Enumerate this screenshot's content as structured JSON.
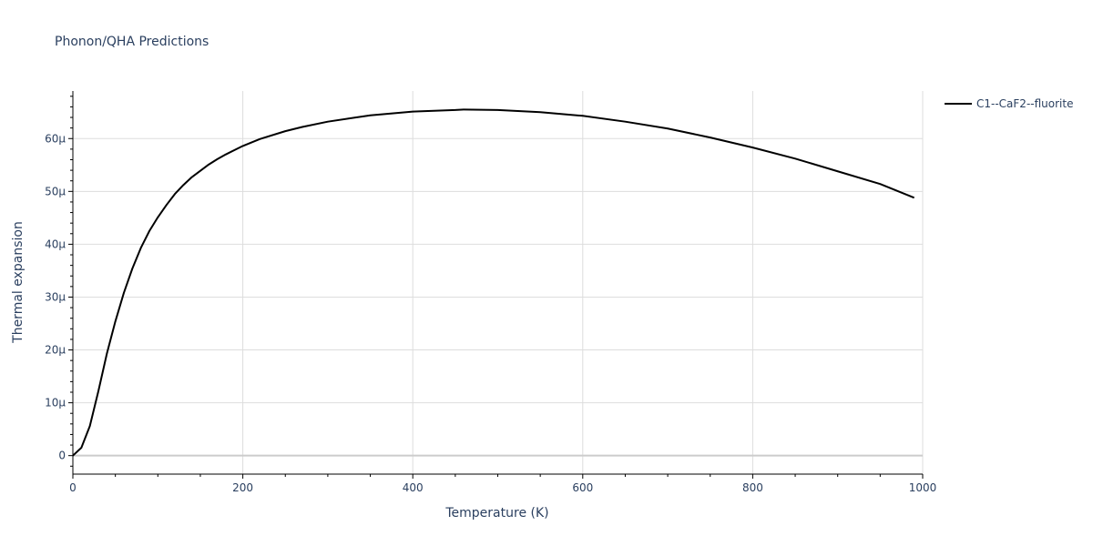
{
  "chart_data": {
    "type": "line",
    "title": "Phonon/QHA Predictions",
    "xlabel": "Temperature (K)",
    "ylabel": "Thermal expansion",
    "xlim": [
      0,
      1000
    ],
    "ylim": [
      -3.5,
      69
    ],
    "x_ticks": [
      0,
      200,
      400,
      600,
      800,
      1000
    ],
    "x_tick_labels": [
      "0",
      "200",
      "400",
      "600",
      "800",
      "1000"
    ],
    "y_ticks": [
      0,
      10,
      20,
      30,
      40,
      50,
      60
    ],
    "y_tick_labels": [
      "0",
      "10μ",
      "20μ",
      "30μ",
      "40μ",
      "50μ",
      "60μ"
    ],
    "y_unit": "μ (1e-6)",
    "grid": true,
    "legend_position": "top-right",
    "series": [
      {
        "name": "C1--CaF2--fluorite",
        "color": "#000000",
        "x": [
          0,
          10,
          20,
          30,
          40,
          50,
          60,
          70,
          80,
          90,
          100,
          110,
          120,
          130,
          140,
          150,
          160,
          170,
          180,
          200,
          220,
          250,
          270,
          300,
          350,
          400,
          450,
          460,
          500,
          550,
          600,
          650,
          700,
          750,
          800,
          850,
          900,
          950,
          990
        ],
        "y": [
          0,
          1.5,
          5.6,
          12.2,
          19.3,
          25.4,
          30.8,
          35.4,
          39.3,
          42.5,
          45.1,
          47.4,
          49.5,
          51.2,
          52.7,
          53.9,
          55.1,
          56.1,
          57.0,
          58.6,
          59.9,
          61.4,
          62.2,
          63.2,
          64.4,
          65.1,
          65.4,
          65.5,
          65.4,
          65.0,
          64.3,
          63.2,
          61.9,
          60.2,
          58.3,
          56.2,
          53.8,
          51.4,
          48.8
        ]
      }
    ]
  }
}
